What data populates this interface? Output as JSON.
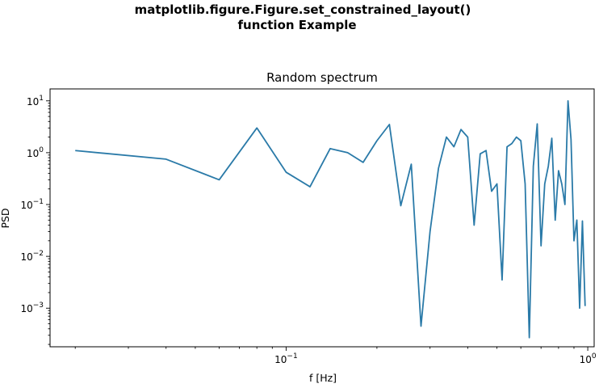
{
  "figure": {
    "suptitle_line1": "matplotlib.figure.Figure.set_constrained_layout()",
    "suptitle_line2": "function Example"
  },
  "chart_data": {
    "type": "line",
    "title": "Random spectrum",
    "xlabel": "f [Hz]",
    "ylabel": "PSD",
    "xscale": "log",
    "yscale": "log",
    "xlim": [
      0.0165,
      1.05
    ],
    "ylim": [
      0.00018,
      17
    ],
    "grid": false,
    "line_color": "#2a7aa8",
    "x_ticks": [
      {
        "base": "10",
        "exp": "−1",
        "value": 0.1
      },
      {
        "base": "10",
        "exp": "0",
        "value": 1
      }
    ],
    "y_ticks": [
      {
        "base": "10",
        "exp": "1",
        "value": 10
      },
      {
        "base": "10",
        "exp": "0",
        "value": 1
      },
      {
        "base": "10",
        "exp": "−1",
        "value": 0.1
      },
      {
        "base": "10",
        "exp": "−2",
        "value": 0.01
      },
      {
        "base": "10",
        "exp": "−3",
        "value": 0.001
      }
    ],
    "series": [
      {
        "x": [
          0.02,
          0.04,
          0.06,
          0.08,
          0.1,
          0.12,
          0.14,
          0.16,
          0.18,
          0.2,
          0.22,
          0.24,
          0.26,
          0.28,
          0.3,
          0.32,
          0.34,
          0.36,
          0.38,
          0.4,
          0.42,
          0.44,
          0.46,
          0.48,
          0.5,
          0.52,
          0.54,
          0.56,
          0.58,
          0.6,
          0.62,
          0.64,
          0.66,
          0.68,
          0.7,
          0.72,
          0.74,
          0.76,
          0.78,
          0.8,
          0.82,
          0.84,
          0.86,
          0.88,
          0.9,
          0.92,
          0.94,
          0.96,
          0.98
        ],
        "y": [
          1.1,
          0.75,
          0.3,
          3.0,
          0.42,
          0.22,
          1.2,
          1.0,
          0.65,
          1.7,
          3.5,
          0.095,
          0.6,
          0.00045,
          0.03,
          0.5,
          2.0,
          1.3,
          2.8,
          2.0,
          0.04,
          0.95,
          1.1,
          0.18,
          0.25,
          0.0035,
          1.3,
          1.5,
          2.0,
          1.7,
          0.25,
          0.00027,
          0.55,
          3.6,
          0.016,
          0.25,
          0.55,
          1.9,
          0.05,
          0.45,
          0.25,
          0.1,
          10.0,
          1.8,
          0.02,
          0.05,
          0.001,
          0.048,
          0.0011
        ]
      }
    ]
  }
}
